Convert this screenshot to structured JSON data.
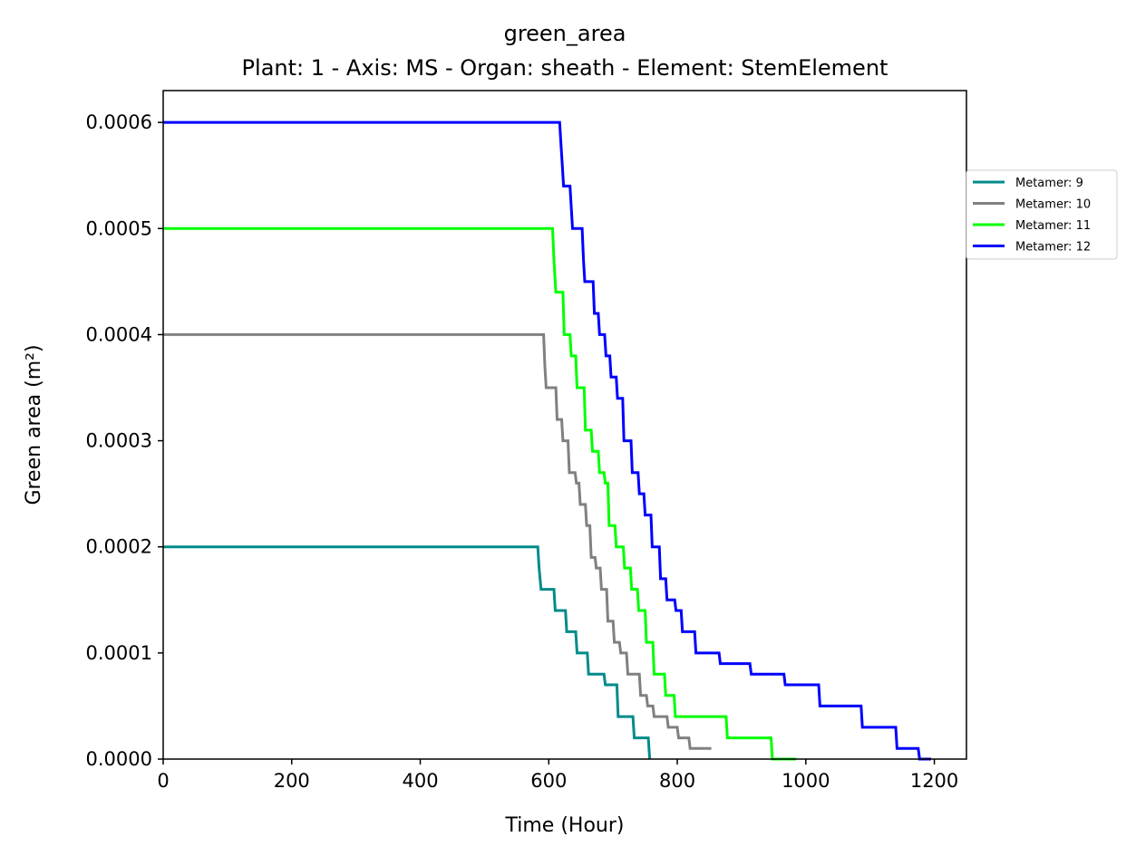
{
  "chart_data": {
    "type": "line",
    "title": "green_area",
    "subtitle": "Plant: 1 - Axis: MS - Organ: sheath - Element: StemElement",
    "xlabel": "Time (Hour)",
    "ylabel": "Green area (m²)",
    "xlim": [
      0,
      1250
    ],
    "ylim": [
      0,
      0.00063
    ],
    "x_ticks": [
      "0",
      "200",
      "400",
      "600",
      "800",
      "1000",
      "1200"
    ],
    "y_ticks": [
      "0.0000",
      "0.0001",
      "0.0002",
      "0.0003",
      "0.0004",
      "0.0005",
      "0.0006"
    ],
    "x_tick_values": [
      0,
      200,
      400,
      600,
      800,
      1000,
      1200
    ],
    "y_tick_values": [
      0,
      0.0001,
      0.0002,
      0.0003,
      0.0004,
      0.0005,
      0.0006
    ],
    "legend_position": "right (outside plot)",
    "grid": false,
    "series": [
      {
        "name": "Metamer: 9",
        "color": "#008b8b",
        "points": [
          [
            0,
            0.0002
          ],
          [
            583,
            0.0002
          ],
          [
            585,
            0.00018
          ],
          [
            588,
            0.00016
          ],
          [
            608,
            0.00016
          ],
          [
            610,
            0.00014
          ],
          [
            626,
            0.00014
          ],
          [
            628,
            0.00012
          ],
          [
            642,
            0.00012
          ],
          [
            644,
            0.0001
          ],
          [
            660,
            0.0001
          ],
          [
            662,
            8e-05
          ],
          [
            686,
            8e-05
          ],
          [
            688,
            7e-05
          ],
          [
            706,
            7e-05
          ],
          [
            708,
            4e-05
          ],
          [
            731,
            4e-05
          ],
          [
            733,
            2e-05
          ],
          [
            755,
            2e-05
          ],
          [
            757,
            0.0
          ]
        ]
      },
      {
        "name": "Metamer: 10",
        "color": "#808080",
        "points": [
          [
            0,
            0.0004
          ],
          [
            592,
            0.0004
          ],
          [
            594,
            0.00037
          ],
          [
            596,
            0.00035
          ],
          [
            611,
            0.00035
          ],
          [
            613,
            0.00032
          ],
          [
            620,
            0.00032
          ],
          [
            622,
            0.0003
          ],
          [
            630,
            0.0003
          ],
          [
            632,
            0.00027
          ],
          [
            641,
            0.00027
          ],
          [
            643,
            0.00026
          ],
          [
            647,
            0.00026
          ],
          [
            649,
            0.00024
          ],
          [
            657,
            0.00024
          ],
          [
            659,
            0.00022
          ],
          [
            664,
            0.00022
          ],
          [
            666,
            0.00019
          ],
          [
            672,
            0.00019
          ],
          [
            674,
            0.00018
          ],
          [
            680,
            0.00018
          ],
          [
            682,
            0.00016
          ],
          [
            690,
            0.00016
          ],
          [
            692,
            0.00013
          ],
          [
            700,
            0.00013
          ],
          [
            702,
            0.00011
          ],
          [
            710,
            0.00011
          ],
          [
            712,
            0.0001
          ],
          [
            721,
            0.0001
          ],
          [
            723,
            8e-05
          ],
          [
            741,
            8e-05
          ],
          [
            743,
            6e-05
          ],
          [
            752,
            6e-05
          ],
          [
            754,
            5e-05
          ],
          [
            762,
            5e-05
          ],
          [
            764,
            4e-05
          ],
          [
            784,
            4e-05
          ],
          [
            786,
            3e-05
          ],
          [
            800,
            3e-05
          ],
          [
            802,
            2e-05
          ],
          [
            818,
            2e-05
          ],
          [
            820,
            1e-05
          ],
          [
            853,
            1e-05
          ]
        ]
      },
      {
        "name": "Metamer: 11",
        "color": "#00ff00",
        "points": [
          [
            0,
            0.0005
          ],
          [
            606,
            0.0005
          ],
          [
            608,
            0.00047
          ],
          [
            611,
            0.00044
          ],
          [
            622,
            0.00044
          ],
          [
            624,
            0.0004
          ],
          [
            633,
            0.0004
          ],
          [
            635,
            0.00038
          ],
          [
            642,
            0.00038
          ],
          [
            644,
            0.00035
          ],
          [
            655,
            0.00035
          ],
          [
            657,
            0.00031
          ],
          [
            666,
            0.00031
          ],
          [
            668,
            0.00029
          ],
          [
            677,
            0.00029
          ],
          [
            679,
            0.00027
          ],
          [
            686,
            0.00027
          ],
          [
            688,
            0.00026
          ],
          [
            692,
            0.00026
          ],
          [
            694,
            0.00022
          ],
          [
            703,
            0.00022
          ],
          [
            705,
            0.0002
          ],
          [
            716,
            0.0002
          ],
          [
            718,
            0.00018
          ],
          [
            727,
            0.00018
          ],
          [
            729,
            0.00016
          ],
          [
            738,
            0.00016
          ],
          [
            740,
            0.00014
          ],
          [
            750,
            0.00014
          ],
          [
            752,
            0.00011
          ],
          [
            762,
            0.00011
          ],
          [
            764,
            8e-05
          ],
          [
            780,
            8e-05
          ],
          [
            782,
            6e-05
          ],
          [
            795,
            6e-05
          ],
          [
            797,
            4e-05
          ],
          [
            876,
            4e-05
          ],
          [
            878,
            2e-05
          ],
          [
            946,
            2e-05
          ],
          [
            948,
            0.0
          ],
          [
            985,
            0.0
          ]
        ]
      },
      {
        "name": "Metamer: 12",
        "color": "#0000ff",
        "points": [
          [
            0,
            0.0006
          ],
          [
            617,
            0.0006
          ],
          [
            619,
            0.00058
          ],
          [
            621,
            0.00056
          ],
          [
            623,
            0.00054
          ],
          [
            633,
            0.00054
          ],
          [
            635,
            0.00052
          ],
          [
            637,
            0.0005
          ],
          [
            652,
            0.0005
          ],
          [
            654,
            0.00047
          ],
          [
            656,
            0.00045
          ],
          [
            669,
            0.00045
          ],
          [
            671,
            0.00042
          ],
          [
            677,
            0.00042
          ],
          [
            679,
            0.0004
          ],
          [
            687,
            0.0004
          ],
          [
            689,
            0.00038
          ],
          [
            695,
            0.00038
          ],
          [
            697,
            0.00036
          ],
          [
            705,
            0.00036
          ],
          [
            707,
            0.00034
          ],
          [
            715,
            0.00034
          ],
          [
            717,
            0.0003
          ],
          [
            728,
            0.0003
          ],
          [
            730,
            0.00027
          ],
          [
            739,
            0.00027
          ],
          [
            741,
            0.00025
          ],
          [
            748,
            0.00025
          ],
          [
            750,
            0.00023
          ],
          [
            759,
            0.00023
          ],
          [
            761,
            0.0002
          ],
          [
            772,
            0.0002
          ],
          [
            774,
            0.00017
          ],
          [
            782,
            0.00017
          ],
          [
            784,
            0.00015
          ],
          [
            796,
            0.00015
          ],
          [
            798,
            0.00014
          ],
          [
            806,
            0.00014
          ],
          [
            808,
            0.00012
          ],
          [
            827,
            0.00012
          ],
          [
            829,
            0.0001
          ],
          [
            865,
            0.0001
          ],
          [
            867,
            9e-05
          ],
          [
            913,
            9e-05
          ],
          [
            915,
            8e-05
          ],
          [
            966,
            8e-05
          ],
          [
            968,
            7e-05
          ],
          [
            1020,
            7e-05
          ],
          [
            1022,
            5e-05
          ],
          [
            1086,
            5e-05
          ],
          [
            1088,
            3e-05
          ],
          [
            1140,
            3e-05
          ],
          [
            1142,
            1e-05
          ],
          [
            1175,
            1e-05
          ],
          [
            1177,
            0.0
          ],
          [
            1195,
            0.0
          ]
        ]
      }
    ]
  }
}
